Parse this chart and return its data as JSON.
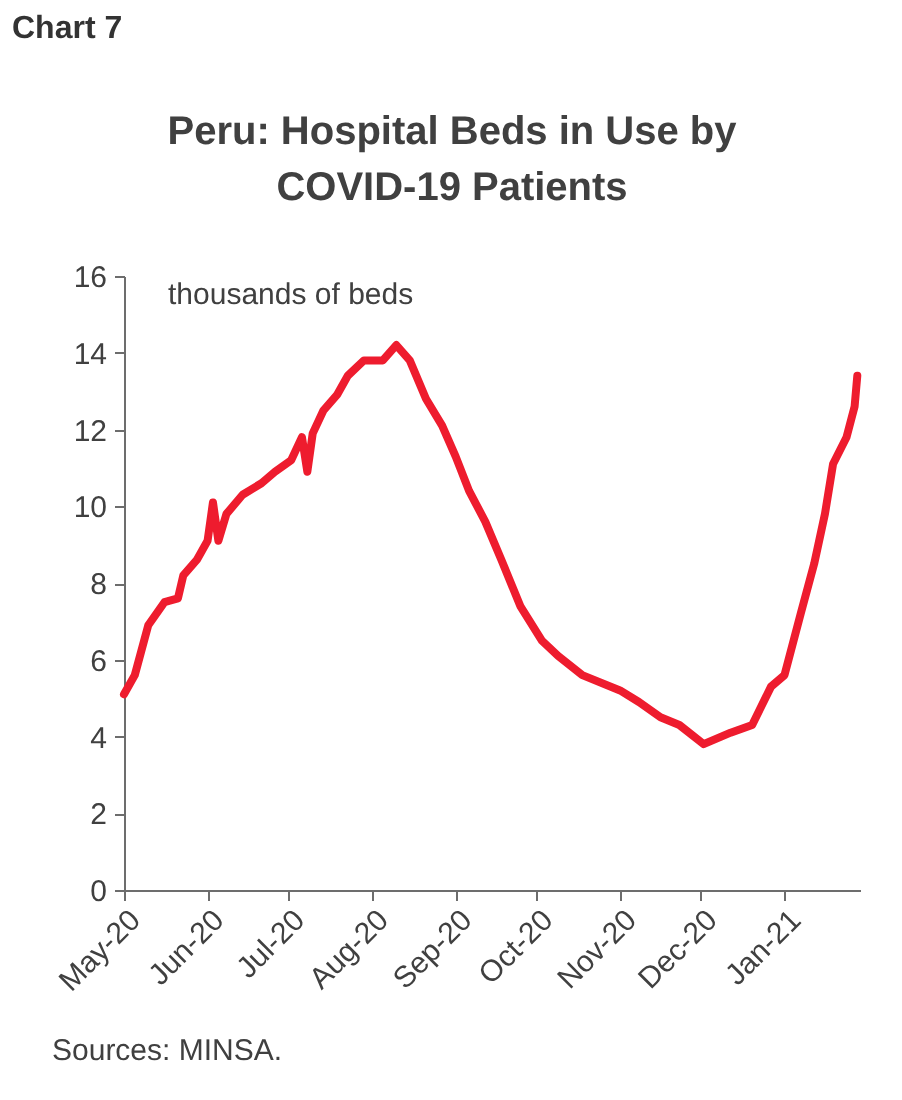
{
  "chart_data": {
    "type": "line",
    "title": "Peru: Hospital Beds in Use by COVID-19 Patients",
    "ylabel": "thousands of beds",
    "annotations": [
      "Chart 7",
      "Sources: MINSA."
    ],
    "x": [
      "2020-05-01",
      "2020-05-05",
      "2020-05-10",
      "2020-05-16",
      "2020-05-21",
      "2020-05-23",
      "2020-05-28",
      "2020-06-01",
      "2020-06-03",
      "2020-06-05",
      "2020-06-08",
      "2020-06-14",
      "2020-06-21",
      "2020-06-26",
      "2020-07-02",
      "2020-07-06",
      "2020-07-08",
      "2020-07-10",
      "2020-07-14",
      "2020-07-19",
      "2020-07-23",
      "2020-07-29",
      "2020-08-05",
      "2020-08-10",
      "2020-08-15",
      "2020-08-21",
      "2020-08-27",
      "2020-09-01",
      "2020-09-06",
      "2020-09-12",
      "2020-09-18",
      "2020-09-25",
      "2020-10-03",
      "2020-10-09",
      "2020-10-18",
      "2020-11-01",
      "2020-11-08",
      "2020-11-16",
      "2020-11-23",
      "2020-12-02",
      "2020-12-12",
      "2020-12-20",
      "2020-12-27",
      "2021-01-01",
      "2021-01-07",
      "2021-01-12",
      "2021-01-16",
      "2021-01-19",
      "2021-01-24",
      "2021-01-27",
      "2021-01-28"
    ],
    "series": [
      {
        "color": "#ee1c2e",
        "values": [
          5.1,
          5.6,
          6.9,
          7.5,
          7.6,
          8.2,
          8.6,
          9.1,
          10.1,
          9.1,
          9.8,
          10.3,
          10.6,
          10.9,
          11.2,
          11.8,
          10.9,
          11.9,
          12.5,
          12.9,
          13.4,
          13.8,
          13.8,
          14.2,
          13.8,
          12.8,
          12.1,
          11.3,
          10.4,
          9.6,
          8.6,
          7.4,
          6.5,
          6.1,
          5.6,
          5.2,
          4.9,
          4.5,
          4.3,
          3.8,
          4.1,
          4.3,
          5.3,
          5.6,
          7.2,
          8.5,
          9.8,
          11.1,
          11.8,
          12.6,
          13.4
        ]
      }
    ],
    "xlim": [
      "2020-05-01",
      "2021-01-29"
    ],
    "xticks": [
      {
        "value": "2020-05-01",
        "label": "May-20"
      },
      {
        "value": "2020-06-01",
        "label": "Jun-20"
      },
      {
        "value": "2020-07-01",
        "label": "Jul-20"
      },
      {
        "value": "2020-08-01",
        "label": "Aug-20"
      },
      {
        "value": "2020-09-01",
        "label": "Sep-20"
      },
      {
        "value": "2020-10-01",
        "label": "Oct-20"
      },
      {
        "value": "2020-11-01",
        "label": "Nov-20"
      },
      {
        "value": "2020-12-01",
        "label": "Dec-20"
      },
      {
        "value": "2021-01-01",
        "label": "Jan-21"
      }
    ],
    "ylim": [
      0,
      16
    ],
    "yticks": [
      0,
      2,
      4,
      6,
      8,
      10,
      12,
      14,
      16
    ],
    "grid": false
  }
}
